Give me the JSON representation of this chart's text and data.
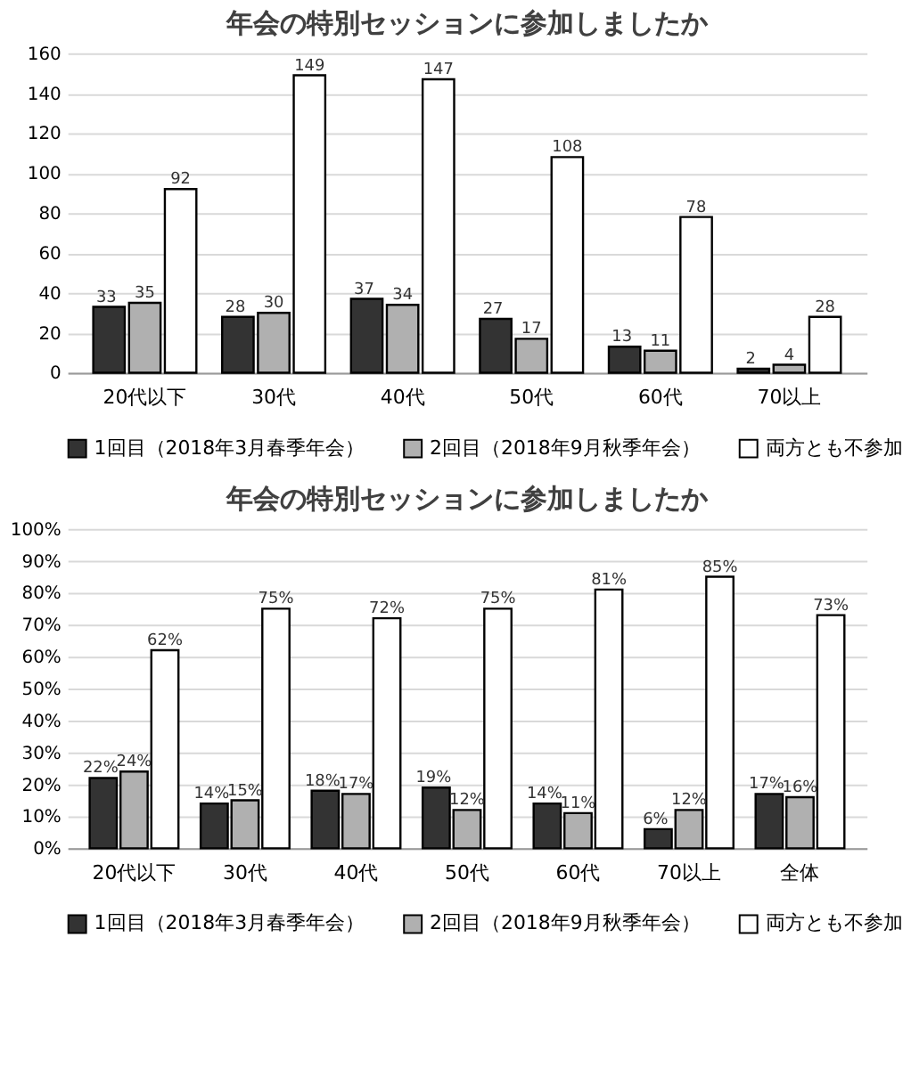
{
  "chart_data": [
    {
      "type": "bar",
      "title": "年会の特別セッションに参加しましたか",
      "categories": [
        "20代以下",
        "30代",
        "40代",
        "50代",
        "60代",
        "70以上"
      ],
      "series": [
        {
          "name": "1回目（2018年3月春季年会）",
          "color": "#333333",
          "values": [
            33,
            28,
            37,
            27,
            13,
            2
          ]
        },
        {
          "name": "2回目（2018年9月秋季年会）",
          "color": "#b0b0b0",
          "values": [
            35,
            30,
            34,
            17,
            11,
            4
          ]
        },
        {
          "name": "両方とも不参加",
          "color": "#ffffff",
          "values": [
            92,
            149,
            147,
            108,
            78,
            28
          ]
        }
      ],
      "ylim": [
        0,
        160
      ],
      "yticks": [
        0,
        20,
        40,
        60,
        80,
        100,
        120,
        140,
        160
      ],
      "grid": "y",
      "legend": "bottom",
      "data_labels": true
    },
    {
      "type": "bar",
      "title": "年会の特別セッションに参加しましたか",
      "categories": [
        "20代以下",
        "30代",
        "40代",
        "50代",
        "60代",
        "70以上",
        "全体"
      ],
      "series": [
        {
          "name": "1回目（2018年3月春季年会）",
          "color": "#333333",
          "values": [
            22,
            14,
            18,
            19,
            14,
            6,
            17
          ],
          "value_labels": [
            "22%",
            "14%",
            "18%",
            "19%",
            "14%",
            "6%",
            "17%"
          ]
        },
        {
          "name": "2回目（2018年9月秋季年会）",
          "color": "#b0b0b0",
          "values": [
            24,
            15,
            17,
            12,
            11,
            12,
            16
          ],
          "value_labels": [
            "24%",
            "15%",
            "17%",
            "12%",
            "11%",
            "12%",
            "16%"
          ]
        },
        {
          "name": "両方とも不参加",
          "color": "#ffffff",
          "values": [
            62,
            75,
            72,
            75,
            81,
            85,
            73
          ],
          "value_labels": [
            "62%",
            "75%",
            "72%",
            "75%",
            "81%",
            "85%",
            "73%"
          ]
        }
      ],
      "ylim": [
        0,
        100
      ],
      "yticks": [
        {
          "value": 0,
          "label": "0%"
        },
        {
          "value": 10,
          "label": "10%"
        },
        {
          "value": 20,
          "label": "20%"
        },
        {
          "value": 30,
          "label": "30%"
        },
        {
          "value": 40,
          "label": "40%"
        },
        {
          "value": 50,
          "label": "50%"
        },
        {
          "value": 60,
          "label": "60%"
        },
        {
          "value": 70,
          "label": "70%"
        },
        {
          "value": 80,
          "label": "80%"
        },
        {
          "value": 90,
          "label": "90%"
        },
        {
          "value": 100,
          "label": "100%"
        }
      ],
      "grid": "y",
      "legend": "bottom"
    }
  ]
}
